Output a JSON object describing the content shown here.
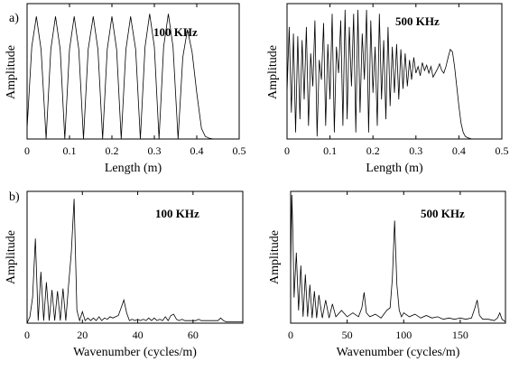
{
  "panel_labels": [
    "a)",
    "b)"
  ],
  "chart_data": [
    {
      "id": "a-100",
      "type": "line",
      "panel": "a)",
      "annotation": "100 KHz",
      "xlabel": "Length (m)",
      "ylabel": "Amplitude",
      "xlim": [
        0,
        0.5
      ],
      "ylim": [
        0,
        1
      ],
      "xticks": [
        "0",
        "0.1",
        "0.2",
        "0.3",
        "0.4",
        "0.5"
      ],
      "xtick_values": [
        0,
        0.1,
        0.2,
        0.3,
        0.4,
        0.5
      ],
      "grid": false,
      "series": [
        {
          "x": [
            0,
            0.011,
            0.022,
            0.033,
            0.045,
            0.056,
            0.067,
            0.078,
            0.089,
            0.1,
            0.111,
            0.122,
            0.133,
            0.144,
            0.156,
            0.167,
            0.178,
            0.189,
            0.2,
            0.211,
            0.222,
            0.233,
            0.244,
            0.256,
            0.267,
            0.278,
            0.289,
            0.3,
            0.311,
            0.322,
            0.333,
            0.344,
            0.356,
            0.367,
            0.378,
            0.389,
            0.4,
            0.411,
            0.42,
            0.43,
            0.44,
            0.45
          ],
          "y": [
            0.08,
            0.7,
            0.93,
            0.68,
            0,
            0.68,
            0.93,
            0.68,
            0,
            0.68,
            0.93,
            0.68,
            0,
            0.68,
            0.93,
            0.68,
            0,
            0.68,
            0.93,
            0.68,
            0,
            0.68,
            0.93,
            0.68,
            0,
            0.7,
            0.95,
            0.7,
            0,
            0.7,
            0.95,
            0.7,
            0,
            0.62,
            0.83,
            0.66,
            0.35,
            0.08,
            0.02,
            0.005,
            0,
            0
          ]
        }
      ]
    },
    {
      "id": "a-500",
      "type": "line",
      "annotation": "500 KHz",
      "xlabel": "Length (m)",
      "ylabel": "Amplitude",
      "xlim": [
        0,
        0.5
      ],
      "ylim": [
        0,
        1
      ],
      "xticks": [
        "0",
        "0.1",
        "0.2",
        "0.3",
        "0.4",
        "0.5"
      ],
      "xtick_values": [
        0,
        0.1,
        0.2,
        0.3,
        0.4,
        0.5
      ],
      "grid": false,
      "series": [
        {
          "x": [
            0,
            0.005,
            0.01,
            0.015,
            0.02,
            0.025,
            0.03,
            0.035,
            0.04,
            0.045,
            0.05,
            0.055,
            0.06,
            0.065,
            0.07,
            0.075,
            0.08,
            0.085,
            0.09,
            0.095,
            0.1,
            0.105,
            0.11,
            0.115,
            0.12,
            0.125,
            0.13,
            0.135,
            0.14,
            0.145,
            0.15,
            0.155,
            0.16,
            0.165,
            0.17,
            0.175,
            0.18,
            0.185,
            0.19,
            0.195,
            0.2,
            0.205,
            0.21,
            0.215,
            0.22,
            0.225,
            0.23,
            0.235,
            0.24,
            0.245,
            0.25,
            0.255,
            0.26,
            0.265,
            0.27,
            0.275,
            0.28,
            0.285,
            0.29,
            0.295,
            0.3,
            0.305,
            0.31,
            0.315,
            0.32,
            0.325,
            0.33,
            0.335,
            0.34,
            0.345,
            0.35,
            0.355,
            0.36,
            0.365,
            0.37,
            0.375,
            0.38,
            0.385,
            0.39,
            0.395,
            0.4,
            0.405,
            0.41,
            0.415,
            0.42,
            0.43,
            0.44,
            0.45
          ],
          "y": [
            0.35,
            0.85,
            0.2,
            0.8,
            0.05,
            0.78,
            0.15,
            0.75,
            0.3,
            0.85,
            0.1,
            0.65,
            0.4,
            0.9,
            0.02,
            0.6,
            0.45,
            0.88,
            0.1,
            0.72,
            0.3,
            0.95,
            0.05,
            0.7,
            0.5,
            0.9,
            0.1,
            0.98,
            0.15,
            0.85,
            0.4,
            0.95,
            0.05,
            0.98,
            0.2,
            0.8,
            0.45,
            0.98,
            0.05,
            0.9,
            0.35,
            0.7,
            0.1,
            0.95,
            0.3,
            0.75,
            0.15,
            0.85,
            0.25,
            0.7,
            0.35,
            0.72,
            0.3,
            0.68,
            0.38,
            0.65,
            0.4,
            0.6,
            0.45,
            0.62,
            0.5,
            0.55,
            0.48,
            0.58,
            0.52,
            0.56,
            0.5,
            0.55,
            0.47,
            0.5,
            0.53,
            0.57,
            0.52,
            0.5,
            0.55,
            0.62,
            0.68,
            0.66,
            0.55,
            0.4,
            0.25,
            0.12,
            0.05,
            0.02,
            0.01,
            0,
            0,
            0
          ]
        }
      ]
    },
    {
      "id": "b-100",
      "type": "line",
      "panel": "b)",
      "annotation": "100 KHz",
      "xlabel": "Wavenumber (cycles/m)",
      "ylabel": "Amplitude",
      "xlim": [
        0,
        78
      ],
      "ylim": [
        0,
        1
      ],
      "xticks": [
        "0",
        "20",
        "40",
        "60"
      ],
      "xtick_values": [
        0,
        20,
        40,
        60
      ],
      "grid": false,
      "series": [
        {
          "x": [
            0,
            1,
            2,
            3,
            4,
            5,
            6,
            7,
            8,
            9,
            10,
            11,
            12,
            13,
            14,
            15,
            16,
            17,
            18,
            19,
            20,
            21,
            22,
            23,
            24,
            25,
            26,
            27,
            28,
            29,
            30,
            31,
            32,
            33,
            34,
            35,
            36,
            37,
            38,
            39,
            40,
            41,
            42,
            43,
            44,
            45,
            46,
            47,
            48,
            49,
            50,
            51,
            52,
            53,
            54,
            55,
            56,
            57,
            58,
            59,
            60,
            61,
            62,
            63,
            64,
            65,
            66,
            67,
            68,
            69,
            70,
            71,
            72,
            73,
            74,
            75,
            76,
            77,
            78
          ],
          "y": [
            0,
            0.05,
            0.2,
            0.66,
            0.02,
            0.4,
            0.02,
            0.32,
            0.02,
            0.26,
            0.02,
            0.25,
            0.02,
            0.27,
            0.02,
            0.3,
            0.55,
            0.97,
            0.1,
            0.02,
            0.09,
            0.02,
            0.04,
            0.02,
            0.04,
            0.02,
            0.05,
            0.02,
            0.04,
            0.03,
            0.05,
            0.04,
            0.05,
            0.06,
            0.12,
            0.18,
            0.08,
            0.02,
            0.03,
            0.02,
            0.03,
            0.02,
            0.03,
            0.02,
            0.04,
            0.02,
            0.04,
            0.02,
            0.03,
            0.02,
            0.05,
            0.02,
            0.06,
            0.07,
            0.03,
            0.02,
            0.03,
            0.02,
            0.02,
            0.02,
            0.02,
            0.02,
            0.03,
            0.02,
            0.02,
            0.02,
            0.02,
            0.02,
            0.02,
            0.02,
            0.04,
            0.02,
            0.01,
            0.01,
            0.01,
            0.01,
            0.01,
            0.01,
            0.01
          ]
        }
      ]
    },
    {
      "id": "b-500",
      "type": "line",
      "annotation": "500 KHz",
      "xlabel": "Wavenumber (cycles/m)",
      "ylabel": "Amplitude",
      "xlim": [
        0,
        190
      ],
      "ylim": [
        0,
        1
      ],
      "xticks": [
        "0",
        "50",
        "100",
        "150"
      ],
      "xtick_values": [
        0,
        50,
        100,
        150
      ],
      "grid": false,
      "series": [
        {
          "x": [
            0,
            1,
            2,
            3,
            5,
            7,
            9,
            11,
            13,
            15,
            17,
            19,
            21,
            23,
            25,
            28,
            31,
            34,
            37,
            40,
            45,
            50,
            55,
            60,
            63,
            65,
            67,
            70,
            75,
            80,
            85,
            88,
            90,
            92,
            94,
            96,
            98,
            100,
            105,
            110,
            115,
            120,
            125,
            130,
            135,
            140,
            145,
            150,
            155,
            160,
            163,
            165,
            167,
            170,
            175,
            180,
            183,
            185,
            187,
            190
          ],
          "y": [
            0.4,
            1.0,
            0.7,
            0.2,
            0.55,
            0.1,
            0.45,
            0.05,
            0.38,
            0.05,
            0.3,
            0.04,
            0.25,
            0.04,
            0.22,
            0.04,
            0.18,
            0.04,
            0.15,
            0.05,
            0.1,
            0.05,
            0.08,
            0.05,
            0.12,
            0.24,
            0.08,
            0.05,
            0.07,
            0.04,
            0.1,
            0.12,
            0.35,
            0.8,
            0.3,
            0.1,
            0.05,
            0.08,
            0.05,
            0.07,
            0.04,
            0.06,
            0.04,
            0.05,
            0.03,
            0.04,
            0.03,
            0.04,
            0.03,
            0.04,
            0.12,
            0.18,
            0.06,
            0.03,
            0.03,
            0.02,
            0.04,
            0.08,
            0.03,
            0.01
          ]
        }
      ]
    }
  ]
}
